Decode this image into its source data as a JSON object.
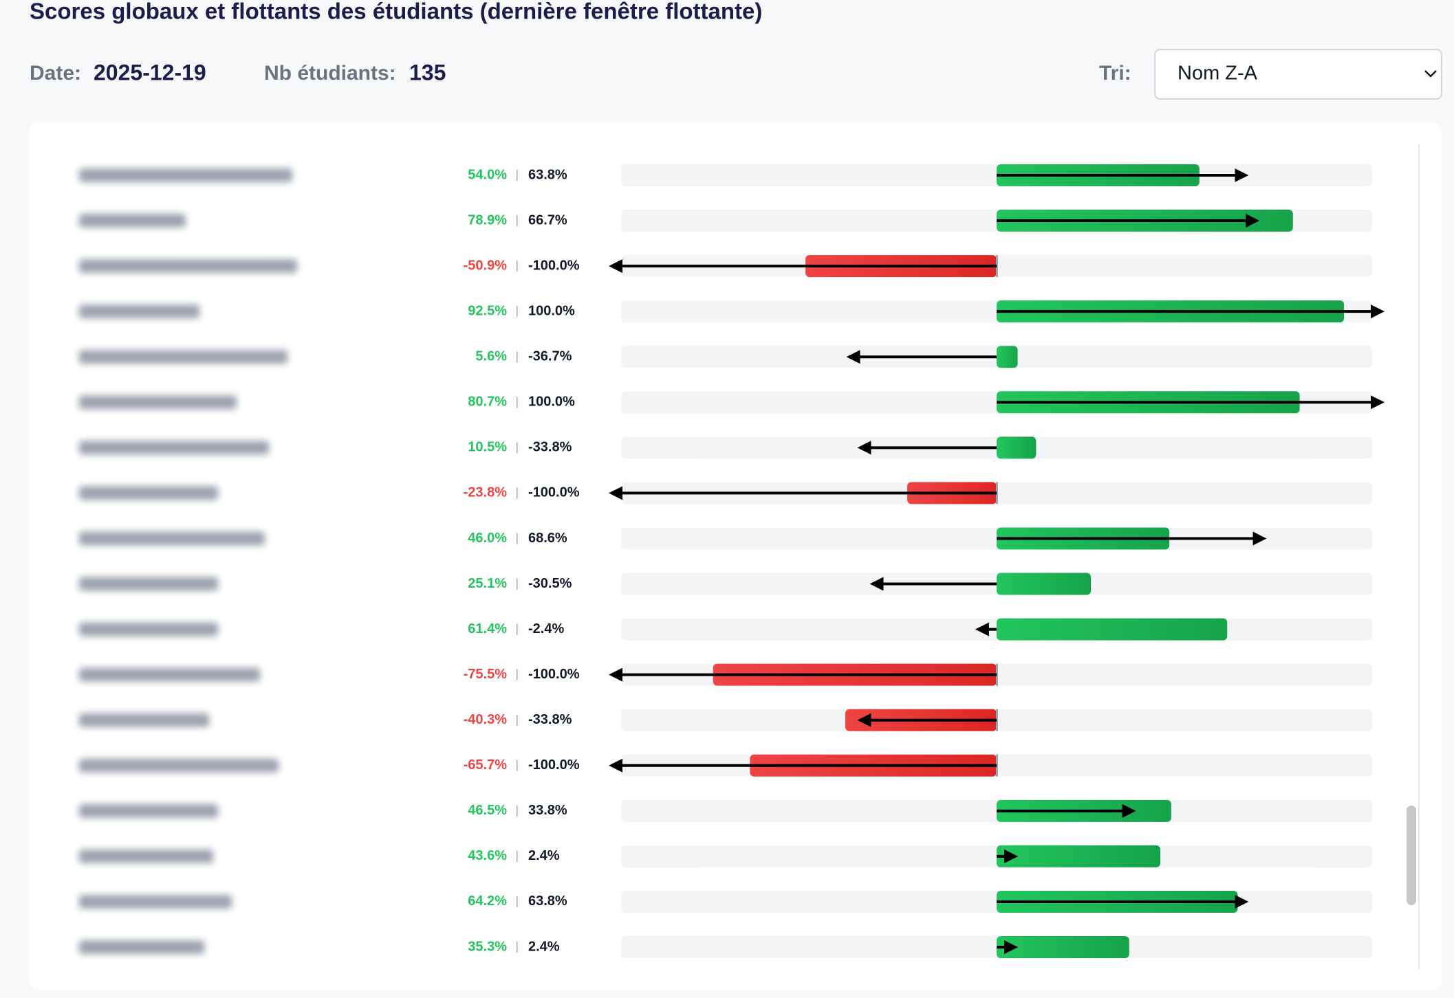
{
  "header": {
    "title": "Scores globaux et flottants des étudiants (dernière fenêtre flottante)",
    "date_label": "Date:",
    "date": "2025-12-19",
    "count_label": "Nb étudiants:",
    "count": 135,
    "sort_label": "Tri:",
    "sort_value": "Nom Z-A"
  },
  "chart_data": {
    "type": "bar",
    "xlim": [
      -100,
      100
    ],
    "positive_color": "#22c55e",
    "negative_color": "#ef4444",
    "arrow_color": "#000000",
    "series": [
      {
        "values": [
          54.0,
          78.9,
          -50.9,
          92.5,
          5.6,
          80.7,
          10.5,
          -23.8,
          46.0,
          25.1,
          61.4,
          -75.5,
          -40.3,
          -65.7,
          46.5,
          43.6,
          64.2,
          35.3
        ],
        "value_labels": [
          "54.0%",
          "78.9%",
          "-50.9%",
          "92.5%",
          "5.6%",
          "80.7%",
          "10.5%",
          "-23.8%",
          "46.0%",
          "25.1%",
          "61.4%",
          "-75.5%",
          "-40.3%",
          "-65.7%",
          "46.5%",
          "43.6%",
          "64.2%",
          "35.3%"
        ]
      },
      {
        "values": [
          63.8,
          66.7,
          -100.0,
          100.0,
          -36.7,
          100.0,
          -33.8,
          -100.0,
          68.6,
          -30.5,
          -2.4,
          -100.0,
          -33.8,
          -100.0,
          33.8,
          2.4,
          63.8,
          2.4
        ],
        "value_labels": [
          "63.8%",
          "66.7%",
          "-100.0%",
          "100.0%",
          "-36.7%",
          "100.0%",
          "-33.8%",
          "-100.0%",
          "68.6%",
          "-30.5%",
          "-2.4%",
          "-100.0%",
          "-33.8%",
          "-100.0%",
          "33.8%",
          "2.4%",
          "63.8%",
          "2.4%"
        ]
      }
    ]
  }
}
